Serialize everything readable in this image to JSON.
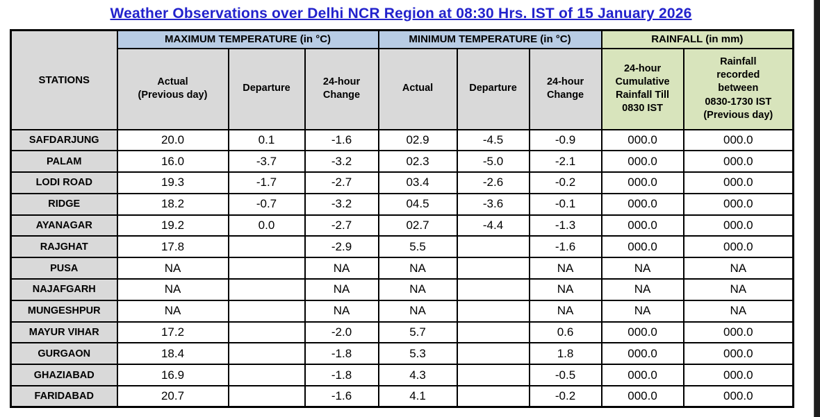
{
  "title": "Weather Observations over Delhi NCR Region at 08:30 Hrs. IST of 15 January 2026",
  "colors": {
    "title_blue": "#2222cc",
    "temp_group_bg": "#b8cce4",
    "rainfall_group_bg": "#d8e4bc",
    "stations_bg": "#d9d9d9",
    "border": "#000000"
  },
  "table": {
    "station_header": "STATIONS",
    "groups": [
      {
        "label": "MAXIMUM TEMPERATURE (in °C)"
      },
      {
        "label": "MINIMUM TEMPERATURE (in °C)"
      },
      {
        "label": "RAINFALL (in mm)"
      }
    ],
    "sub_headers": [
      "Actual\n(Previous day)",
      "Departure",
      "24-hour\nChange",
      "Actual",
      "Departure",
      "24-hour\nChange",
      "24-hour\nCumulative\nRainfall Till\n0830 IST",
      "Rainfall\nrecorded\nbetween\n0830-1730 IST\n(Previous day)"
    ],
    "rows": [
      {
        "station": "SAFDARJUNG",
        "values": [
          "20.0",
          "0.1",
          "-1.6",
          "02.9",
          "-4.5",
          "-0.9",
          "000.0",
          "000.0"
        ]
      },
      {
        "station": "PALAM",
        "values": [
          "16.0",
          "-3.7",
          "-3.2",
          "02.3",
          "-5.0",
          "-2.1",
          "000.0",
          "000.0"
        ]
      },
      {
        "station": "LODI ROAD",
        "values": [
          "19.3",
          "-1.7",
          "-2.7",
          "03.4",
          "-2.6",
          "-0.2",
          "000.0",
          "000.0"
        ]
      },
      {
        "station": "RIDGE",
        "values": [
          "18.2",
          "-0.7",
          "-3.2",
          "04.5",
          "-3.6",
          "-0.1",
          "000.0",
          "000.0"
        ]
      },
      {
        "station": "AYANAGAR",
        "values": [
          "19.2",
          "0.0",
          "-2.7",
          "02.7",
          "-4.4",
          "-1.3",
          "000.0",
          "000.0"
        ]
      },
      {
        "station": "RAJGHAT",
        "values": [
          "17.8",
          "",
          "-2.9",
          "5.5",
          "",
          "-1.6",
          "000.0",
          "000.0"
        ]
      },
      {
        "station": "PUSA",
        "values": [
          "NA",
          "",
          "NA",
          "NA",
          "",
          "NA",
          "NA",
          "NA"
        ]
      },
      {
        "station": "NAJAFGARH",
        "values": [
          "NA",
          "",
          "NA",
          "NA",
          "",
          "NA",
          "NA",
          "NA"
        ]
      },
      {
        "station": "MUNGESHPUR",
        "values": [
          "NA",
          "",
          "NA",
          "NA",
          "",
          "NA",
          "NA",
          "NA"
        ]
      },
      {
        "station": "MAYUR VIHAR",
        "values": [
          "17.2",
          "",
          "-2.0",
          "5.7",
          "",
          "0.6",
          "000.0",
          "000.0"
        ]
      },
      {
        "station": "GURGAON",
        "values": [
          "18.4",
          "",
          "-1.8",
          "5.3",
          "",
          "1.8",
          "000.0",
          "000.0"
        ]
      },
      {
        "station": "GHAZIABAD",
        "values": [
          "16.9",
          "",
          "-1.8",
          "4.3",
          "",
          "-0.5",
          "000.0",
          "000.0"
        ]
      },
      {
        "station": "FARIDABAD",
        "values": [
          "20.7",
          "",
          "-1.6",
          "4.1",
          "",
          "-0.2",
          "000.0",
          "000.0"
        ]
      }
    ]
  }
}
